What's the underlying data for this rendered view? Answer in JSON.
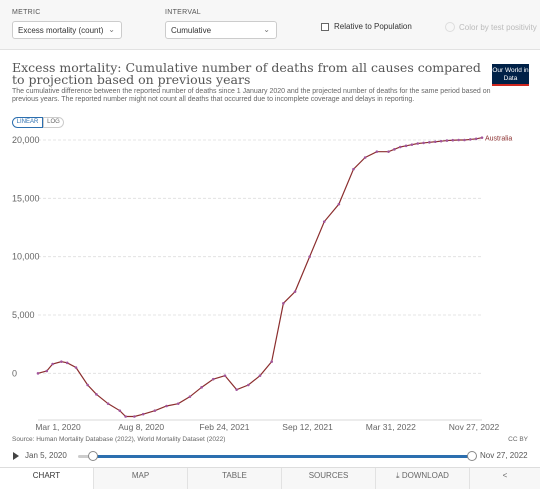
{
  "controls": {
    "metric_label": "METRIC",
    "metric_value": "Excess mortality (count)",
    "interval_label": "INTERVAL",
    "interval_value": "Cumulative",
    "relative_label": "Relative to Population",
    "positivity_label": "Color by test positivity"
  },
  "header": {
    "title": "Excess mortality: Cumulative number of deaths from all causes compared to projection based on previous years",
    "subtitle": "The cumulative difference between the reported number of deaths since 1 January 2020 and the projected number of deaths for the same period based on previous years. The reported number might not count all deaths that occurred due to incomplete coverage and delays in reporting.",
    "logo": "Our World in Data"
  },
  "scale": {
    "linear": "LINEAR",
    "log": "LOG"
  },
  "footer": {
    "source": "Source: Human Mortality Database (2022), World Mortality Dataset (2022)",
    "license": "CC BY"
  },
  "timeline": {
    "start": "Jan 5, 2020",
    "end": "Nov 27, 2022"
  },
  "tabs": {
    "chart": "CHART",
    "map": "MAP",
    "table": "TABLE",
    "sources": "SOURCES",
    "download": "DOWNLOAD",
    "share": "<"
  },
  "colors": {
    "series": "#a2559c",
    "line_dark": "#8b2e2e",
    "accent": "#2c6faf"
  },
  "chart_data": {
    "type": "line",
    "y_ticks": [
      0,
      5000,
      10000,
      15000,
      20000
    ],
    "y_tick_labels": [
      "0",
      "5,000",
      "10,000",
      "15,000",
      "20,000"
    ],
    "ylim": [
      -4000,
      20000
    ],
    "x_ticks": [
      "Mar 1, 2020",
      "Aug 8, 2020",
      "Feb 24, 2021",
      "Sep 12, 2021",
      "Mar 31, 2022",
      "Nov 27, 2022"
    ],
    "grid": "horizontal dashed",
    "series": [
      {
        "name": "Australia",
        "x": [
          0,
          3,
          5,
          8,
          10,
          13,
          17,
          20,
          24,
          28,
          30,
          33,
          36,
          40,
          44,
          48,
          52,
          56,
          60,
          64,
          68,
          72,
          76,
          80,
          84,
          88,
          93,
          98,
          103,
          108,
          112,
          116,
          120,
          122,
          124,
          126,
          128,
          130,
          132,
          134,
          136,
          138,
          140,
          142,
          144,
          146,
          148,
          150,
          152
        ],
        "y": [
          0,
          200,
          800,
          1000,
          900,
          500,
          -1000,
          -1800,
          -2600,
          -3200,
          -3700,
          -3700,
          -3500,
          -3200,
          -2800,
          -2600,
          -2000,
          -1200,
          -500,
          -200,
          -1400,
          -1000,
          -200,
          1000,
          6000,
          7000,
          10000,
          13000,
          14500,
          17500,
          18500,
          19000,
          19000,
          19200,
          19400,
          19500,
          19600,
          19700,
          19750,
          19800,
          19850,
          19900,
          19950,
          19980,
          20000,
          20000,
          20050,
          20100,
          20200
        ]
      }
    ]
  }
}
